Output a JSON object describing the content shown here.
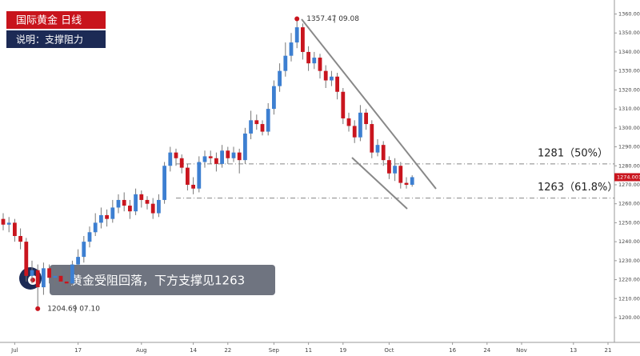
{
  "chart_data": {
    "type": "candlestick",
    "title": "国际黄金 日线",
    "subtitle": "说明：支撑阻力",
    "annotation": "黄金受阻回落，下方支撑见1263",
    "high_note": {
      "price": "1357.47",
      "date": "09.08"
    },
    "low_note": {
      "price": "1204.69",
      "date": "07.10"
    },
    "last_price": {
      "value": 1274.001,
      "label": "1274.001"
    },
    "levels": [
      {
        "value": 1281,
        "label": "1281（50%）"
      },
      {
        "value": 1263,
        "label": "1263（61.8%）"
      }
    ],
    "up_color": "#3d7fd1",
    "down_color": "#c9151e",
    "categories": [
      null,
      null,
      "Jul",
      null,
      null,
      null,
      null,
      null,
      null,
      null,
      null,
      null,
      null,
      "17",
      null,
      null,
      null,
      null,
      null,
      null,
      null,
      null,
      null,
      null,
      "Aug",
      null,
      null,
      null,
      null,
      null,
      null,
      null,
      null,
      "14",
      null,
      null,
      null,
      null,
      null,
      "22",
      null,
      null,
      null,
      null,
      null,
      null,
      null,
      "Sep",
      null,
      null,
      null,
      null,
      null,
      "11",
      null,
      null,
      null,
      null,
      null,
      "19",
      null,
      null,
      null,
      null,
      null,
      null,
      null,
      "Oct",
      null,
      null,
      null,
      null,
      null,
      null,
      null,
      null,
      null,
      null,
      "16",
      null,
      null,
      null,
      null,
      null,
      "24",
      null,
      null,
      null,
      null,
      null,
      "Nov",
      null,
      null,
      null,
      null,
      null,
      null,
      null,
      null,
      "13",
      null,
      null,
      null,
      null,
      null,
      "21",
      null
    ],
    "open": [
      1252,
      1249,
      1250,
      1243,
      1240,
      1222,
      1225,
      1216,
      1226,
      1221,
      1222,
      1219,
      1218,
      1228,
      1232,
      1240,
      1245,
      1250,
      1254,
      1252,
      1258,
      1262,
      1259,
      1256,
      1265,
      1262,
      1260,
      1255,
      1262,
      1280,
      1287,
      1284,
      1279,
      1270,
      1268,
      1282,
      1285,
      1284,
      1281,
      1288,
      1284,
      1287,
      1283,
      1297,
      1304,
      1302,
      1298,
      1310,
      1322,
      1330,
      1338,
      1345,
      1353,
      1340,
      1334,
      1337,
      1330,
      1325,
      1327,
      1319,
      1305,
      1301,
      1295,
      1308,
      1302,
      1287,
      1291,
      1283,
      1276,
      1280,
      1271,
      1270,
      null,
      null,
      null,
      null,
      null,
      null,
      null,
      null,
      null,
      null,
      null,
      null,
      null,
      null,
      null,
      null,
      null,
      null,
      null,
      null,
      null,
      null,
      null,
      null,
      null,
      null,
      null,
      null,
      null,
      null,
      null,
      null,
      null,
      null,
      null
    ],
    "high": [
      1255,
      1253,
      1252,
      1247,
      1242,
      1230,
      1228,
      1229,
      1228,
      1226,
      1226,
      1223,
      1230,
      1236,
      1243,
      1248,
      1255,
      1258,
      1257,
      1262,
      1265,
      1266,
      1262,
      1268,
      1267,
      1264,
      1263,
      1265,
      1282,
      1290,
      1289,
      1286,
      1281,
      1274,
      1285,
      1288,
      1288,
      1287,
      1291,
      1290,
      1290,
      1289,
      1300,
      1309,
      1307,
      1304,
      1313,
      1325,
      1334,
      1345,
      1350,
      1357.47,
      1355,
      1343,
      1340,
      1339,
      1333,
      1330,
      1329,
      1321,
      1308,
      1304,
      1312,
      1310,
      1304,
      1294,
      1293,
      1285,
      1284,
      1282,
      1274,
      1275,
      null,
      null,
      null,
      null,
      null,
      null,
      null,
      null,
      null,
      null,
      null,
      null,
      null,
      null,
      null,
      null,
      null,
      null,
      null,
      null,
      null,
      null,
      null,
      null,
      null,
      null,
      null,
      null,
      null,
      null,
      null,
      null,
      null,
      null,
      null
    ],
    "low": [
      1246,
      1245,
      1240,
      1236,
      1219,
      1218,
      1204.69,
      1212,
      1218,
      1217,
      1215,
      1214,
      1216,
      1225,
      1229,
      1237,
      1243,
      1247,
      1248,
      1250,
      1255,
      1256,
      1252,
      1254,
      1258,
      1257,
      1252,
      1253,
      1260,
      1277,
      1280,
      1276,
      1267,
      1265,
      1266,
      1279,
      1281,
      1277,
      1279,
      1281,
      1282,
      1276,
      1281,
      1294,
      1299,
      1296,
      1296,
      1307,
      1319,
      1327,
      1335,
      1342,
      1336,
      1330,
      1331,
      1326,
      1321,
      1322,
      1315,
      1302,
      1298,
      1292,
      1293,
      1299,
      1284,
      1285,
      1280,
      1273,
      1272,
      1268,
      1268,
      1269,
      null,
      null,
      null,
      null,
      null,
      null,
      null,
      null,
      null,
      null,
      null,
      null,
      null,
      null,
      null,
      null,
      null,
      null,
      null,
      null,
      null,
      null,
      null,
      null,
      null,
      null,
      null,
      null,
      null,
      null,
      null,
      null,
      null,
      null,
      null
    ],
    "close": [
      1249,
      1250,
      1243,
      1240,
      1222,
      1225,
      1216,
      1226,
      1221,
      1222,
      1219,
      1218,
      1228,
      1232,
      1240,
      1245,
      1250,
      1254,
      1252,
      1258,
      1262,
      1259,
      1256,
      1265,
      1262,
      1260,
      1255,
      1262,
      1280,
      1287,
      1284,
      1279,
      1270,
      1268,
      1282,
      1285,
      1284,
      1281,
      1288,
      1284,
      1287,
      1283,
      1297,
      1304,
      1302,
      1298,
      1310,
      1322,
      1330,
      1338,
      1345,
      1353,
      1340,
      1334,
      1337,
      1330,
      1325,
      1327,
      1319,
      1305,
      1301,
      1295,
      1308,
      1302,
      1287,
      1291,
      1283,
      1276,
      1280,
      1271,
      1270,
      1274,
      null,
      null,
      null,
      null,
      null,
      null,
      null,
      null,
      null,
      null,
      null,
      null,
      null,
      null,
      null,
      null,
      null,
      null,
      null,
      null,
      null,
      null,
      null,
      null,
      null,
      null,
      null,
      null,
      null,
      null,
      null,
      null,
      null,
      null,
      null
    ],
    "ylim": [
      1200,
      1360
    ],
    "yticks": [
      {
        "value": 1200,
        "label": "1200.000"
      },
      {
        "value": 1210,
        "label": "1210.000"
      },
      {
        "value": 1220,
        "label": "1220.000"
      },
      {
        "value": 1230,
        "label": "1230.000"
      },
      {
        "value": 1240,
        "label": "1240.000"
      },
      {
        "value": 1250,
        "label": "1250.000"
      },
      {
        "value": 1260,
        "label": "1260.000"
      },
      {
        "value": 1270,
        "label": "1270.000"
      },
      {
        "value": 1280,
        "label": "1280.000"
      },
      {
        "value": 1290,
        "label": "1290.000"
      },
      {
        "value": 1300,
        "label": "1300.000"
      },
      {
        "value": 1310,
        "label": "1310.000"
      },
      {
        "value": 1320,
        "label": "1320.000"
      },
      {
        "value": 1330,
        "label": "1330.000"
      },
      {
        "value": 1340,
        "label": "1340.000"
      },
      {
        "value": 1350,
        "label": "1350.000"
      },
      {
        "value": 1360,
        "label": "1360.000"
      }
    ]
  }
}
